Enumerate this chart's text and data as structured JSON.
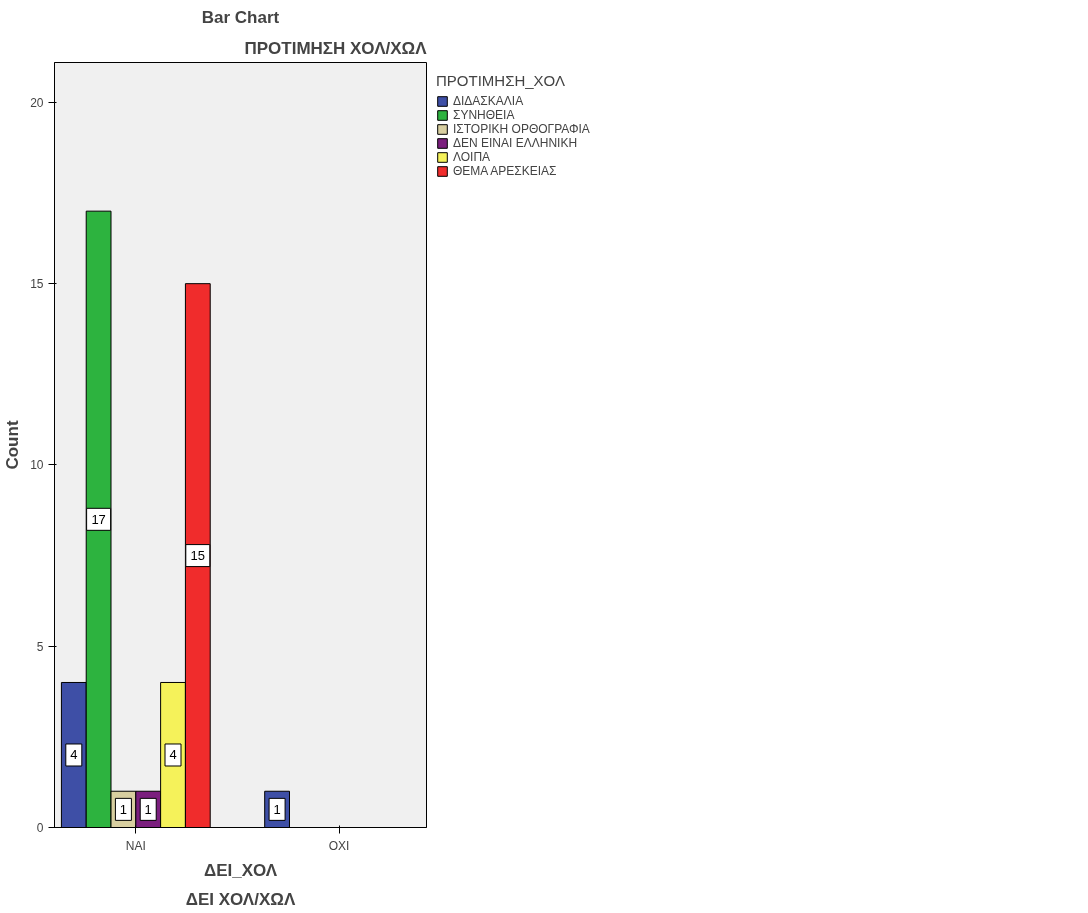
{
  "chart_data": {
    "type": "bar",
    "title": "Bar Chart",
    "xlabel": "ΔΕΙ_ΧΟΛ",
    "ylabel": "Count",
    "legend_title": "ΠΡΟΤΙΜΗΣΗ_ΧΟΛ",
    "annotations": [
      "ΠΡΟΤΙΜΗΣΗ ΧΟΛ/ΧΩΛ",
      "ΔΕΙ ΧΟΛ/ΧΩΛ"
    ],
    "categories": [
      "ΝΑΙ",
      "ΟΧΙ"
    ],
    "series": [
      {
        "name": "ΔΙΔΑΣΚΑΛΙΑ",
        "color": "#3e4fa6",
        "values": [
          4,
          1
        ]
      },
      {
        "name": "ΣΥΝΗΘΕΙΑ",
        "color": "#2db33f",
        "values": [
          17,
          null
        ]
      },
      {
        "name": "ΙΣΤΟΡΙΚΗ ΟΡΘΟΓΡΑΦΙΑ",
        "color": "#d8cfa0",
        "values": [
          1,
          null
        ]
      },
      {
        "name": "ΔΕΝ ΕΙΝΑΙ ΕΛΛΗΝΙΚΗ",
        "color": "#7b1f7e",
        "values": [
          1,
          null
        ]
      },
      {
        "name": "ΛΟΙΠΑ",
        "color": "#f5f25a",
        "values": [
          4,
          null
        ]
      },
      {
        "name": "ΘΕΜΑ ΑΡΕΣΚΕΙΑΣ",
        "color": "#f02c2c",
        "values": [
          15,
          null
        ]
      }
    ],
    "ylim": [
      0,
      21.1
    ],
    "yticks": [
      0,
      5,
      10,
      15,
      20
    ],
    "grid": false,
    "legend": "top right",
    "data_labels": true
  }
}
